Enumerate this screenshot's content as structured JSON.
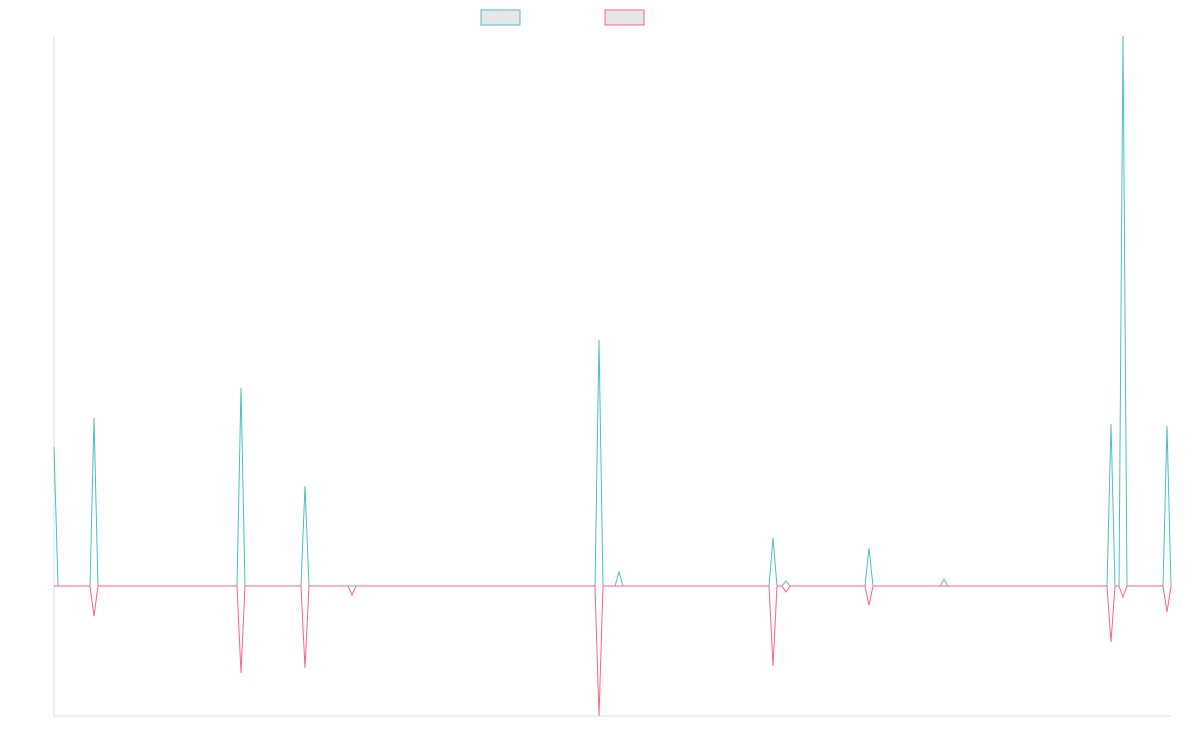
{
  "chart_data": {
    "type": "line",
    "x": [
      0,
      4,
      36,
      40,
      44,
      183,
      187,
      191,
      247,
      251,
      255,
      294,
      298,
      302,
      541,
      545,
      549,
      561,
      565,
      569,
      715,
      719,
      723,
      728,
      732,
      736,
      811,
      815,
      819,
      886,
      890,
      894,
      1053,
      1057,
      1061,
      1065,
      1069,
      1073,
      1109,
      1113,
      1117
    ],
    "series": [
      {
        "color": "#4bc0c0",
        "values": [
          139,
          0,
          0,
          168,
          0,
          0,
          198,
          0,
          0,
          100,
          0,
          0,
          0,
          0,
          0,
          246,
          0,
          0,
          14,
          0,
          0,
          48,
          0,
          0,
          5,
          0,
          0,
          38,
          0,
          0,
          7,
          0,
          0,
          162,
          0,
          0,
          550,
          0,
          0,
          160,
          0
        ]
      },
      {
        "color": "#ff6384",
        "values": [
          0,
          0,
          0,
          -30,
          0,
          0,
          -87,
          0,
          0,
          -82,
          0,
          0,
          -9,
          0,
          0,
          -130,
          0,
          0,
          0,
          0,
          0,
          -80,
          0,
          0,
          -6,
          0,
          0,
          -19,
          0,
          0,
          0,
          0,
          0,
          -56,
          0,
          0,
          -11,
          0,
          0,
          -26,
          0
        ]
      }
    ],
    "xlim": [
      0,
      1117
    ],
    "ylim": [
      -130,
      550
    ]
  }
}
